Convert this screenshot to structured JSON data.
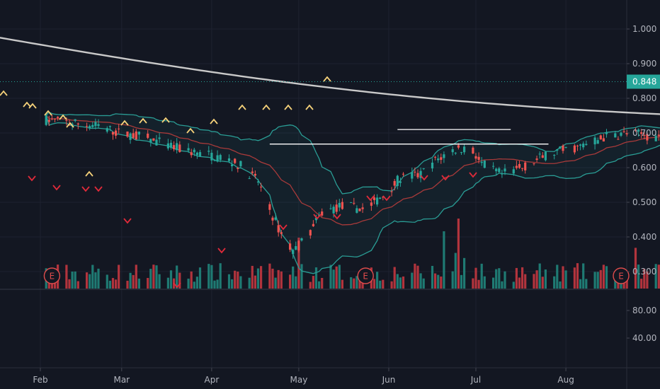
{
  "chart_data": {
    "type": "candlestick",
    "price_axis": {
      "ticks": [
        "1.000",
        "0.900",
        "0.800",
        "0.700",
        "0.600",
        "0.500",
        "0.400",
        "0.300"
      ],
      "range": [
        0.25,
        1.07
      ],
      "current_price_label": "0.848",
      "current_price": 0.848
    },
    "volume_axis": {
      "ticks": [
        "80.00",
        "40.00"
      ]
    },
    "time_axis": {
      "labels": [
        "Feb",
        "Mar",
        "Apr",
        "May",
        "Jun",
        "Jul",
        "Aug"
      ]
    },
    "earnings_marker_label": "E",
    "earnings_markers": [
      "2021-02-05",
      "2021-05-24",
      "2021-08-20"
    ],
    "resistance_lines": [
      {
        "from": "2021-04-21",
        "to": "2021-07-26",
        "price": 0.668
      },
      {
        "from": "2021-06-04",
        "to": "2021-07-13",
        "price": 0.71
      }
    ],
    "colors": {
      "background": "#131722",
      "up": "#26a69a",
      "down": "#ef5350",
      "volume_up": "#1f7a73",
      "volume_down": "#b2343d",
      "ma_long": "#c9c9c9",
      "bollinger": "#2a9d95",
      "ma_mid": "#a83a3a",
      "buy_marker": "#f6d27a",
      "sell_marker": "#e02a3a",
      "price_line": "#26a69a"
    }
  }
}
